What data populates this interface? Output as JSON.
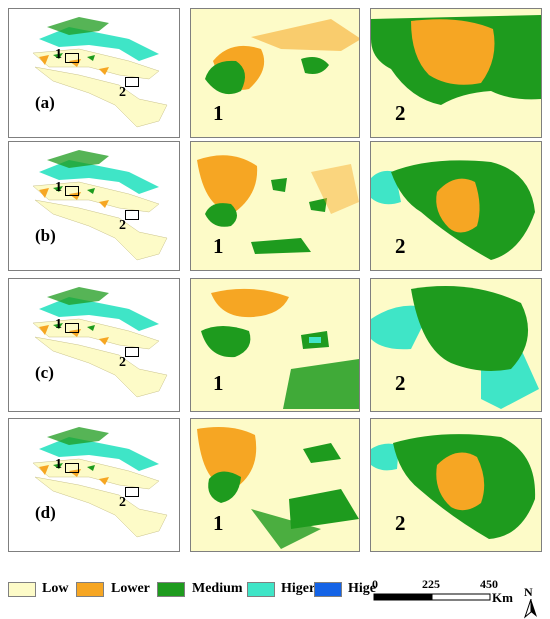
{
  "rows": [
    {
      "label": "(a)",
      "marker1": "1",
      "marker2": "2",
      "zoom1": "1",
      "zoom2": "2"
    },
    {
      "label": "(b)",
      "marker1": "1",
      "marker2": "2",
      "zoom1": "1",
      "zoom2": "2"
    },
    {
      "label": "(c)",
      "marker1": "1",
      "marker2": "2",
      "zoom1": "1",
      "zoom2": "2"
    },
    {
      "label": "(d)",
      "marker1": "1",
      "marker2": "2",
      "zoom1": "1",
      "zoom2": "2"
    }
  ],
  "legend": [
    {
      "label": "Low",
      "color": "#fdfbc8"
    },
    {
      "label": "Lower",
      "color": "#f6a623"
    },
    {
      "label": "Medium",
      "color": "#1e9b1e"
    },
    {
      "label": "Higer",
      "color": "#3fe5c7"
    },
    {
      "label": "Hige",
      "color": "#1463e6"
    }
  ],
  "scale_bar": {
    "ticks": [
      "0",
      "225",
      "450"
    ],
    "unit": "Km"
  },
  "north_arrow": {
    "label": "N"
  }
}
